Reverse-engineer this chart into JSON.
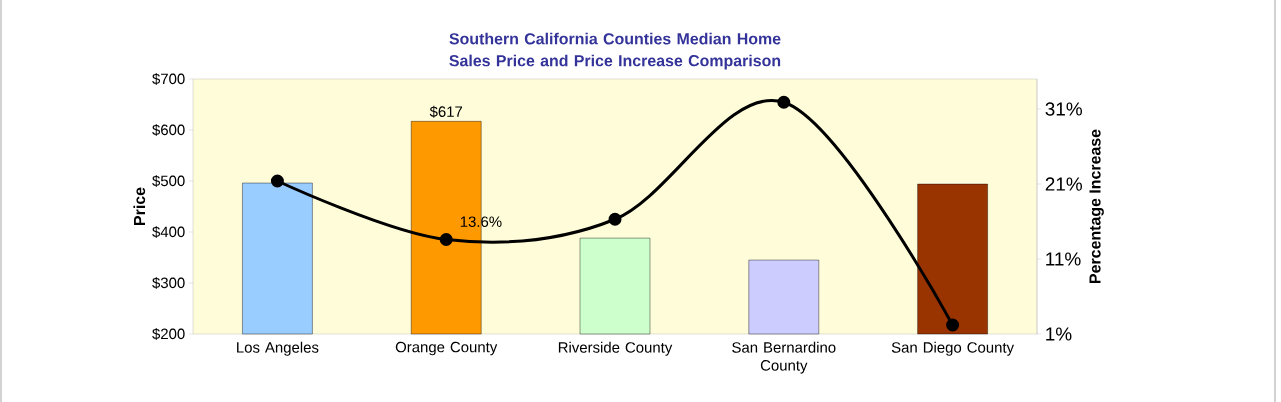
{
  "chart_data": {
    "type": "bar",
    "title": "Southern California Counties Median Home Sales Price and Price Increase Comparison",
    "ylabel": "Price",
    "y2label": "Percentage Increase",
    "categories": [
      "Los Angeles",
      "Orange County",
      "Riverside County",
      "San Bernardino County",
      "San Diego County"
    ],
    "ylim": [
      200,
      700
    ],
    "yticks": [
      {
        "value": 200,
        "label": "$200"
      },
      {
        "value": 300,
        "label": "$300"
      },
      {
        "value": 400,
        "label": "$400"
      },
      {
        "value": 500,
        "label": "$500"
      },
      {
        "value": 600,
        "label": "$600"
      },
      {
        "value": 700,
        "label": "$700"
      }
    ],
    "y2lim": [
      1,
      35
    ],
    "y2ticks": [
      {
        "value": 1,
        "label": "1%"
      },
      {
        "value": 11,
        "label": "11%"
      },
      {
        "value": 21,
        "label": "21%"
      },
      {
        "value": 31,
        "label": "31%"
      }
    ],
    "series": [
      {
        "values": [
          496,
          617,
          388,
          345,
          494
        ],
        "colors": [
          "#99ccff",
          "#ff9900",
          "#ccffcc",
          "#ccccff",
          "#993300"
        ],
        "value_labels": [
          null,
          "$617",
          null,
          null,
          null
        ]
      },
      {
        "type": "line",
        "axis": "y2",
        "color": "#000000",
        "marker": "circle",
        "line_style": "solid",
        "values": [
          21.4,
          13.6,
          16.3,
          31.9,
          2.2
        ],
        "value_labels": [
          null,
          "13.6%",
          null,
          null,
          null
        ]
      }
    ]
  }
}
